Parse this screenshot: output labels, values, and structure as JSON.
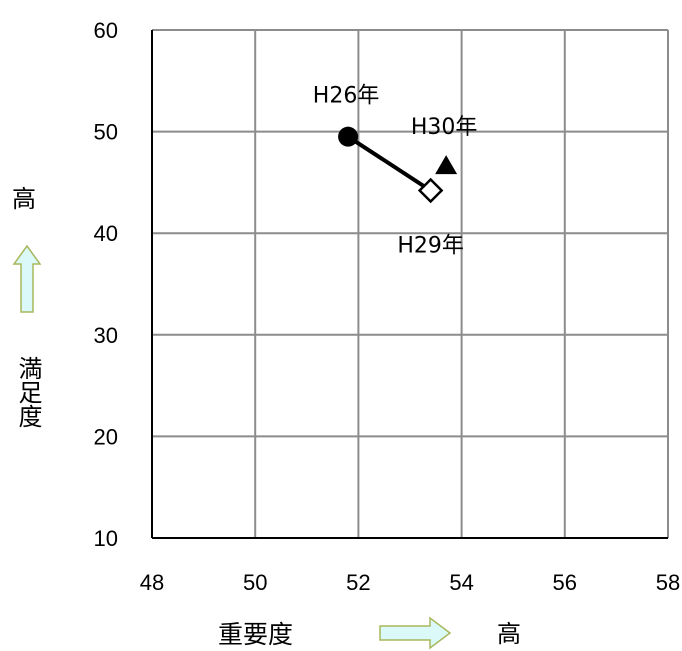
{
  "chart_data": {
    "type": "scatter",
    "title": "",
    "xlabel": "重要度",
    "ylabel": "満足度",
    "x_high_label": "高",
    "y_high_label": "高",
    "xlim": [
      48,
      58
    ],
    "ylim": [
      10,
      60
    ],
    "x_ticks": [
      "48",
      "50",
      "52",
      "54",
      "56",
      "58"
    ],
    "y_ticks": [
      "10",
      "20",
      "30",
      "40",
      "50",
      "60"
    ],
    "grid": true,
    "points": [
      {
        "label": "H26年",
        "x": 51.8,
        "y": 49.5,
        "marker": "circle-filled"
      },
      {
        "label": "H29年",
        "x": 53.4,
        "y": 44.2,
        "marker": "diamond-open"
      },
      {
        "label": "H30年",
        "x": 53.7,
        "y": 46.5,
        "marker": "triangle-filled"
      }
    ],
    "connected": [
      "H26年",
      "H29年"
    ]
  },
  "colors": {
    "grid": "#8c8c8c",
    "axis": "#000000",
    "marker": "#000000",
    "arrow_fill": "#dcf9f9",
    "arrow_stroke": "#a8b85c"
  }
}
